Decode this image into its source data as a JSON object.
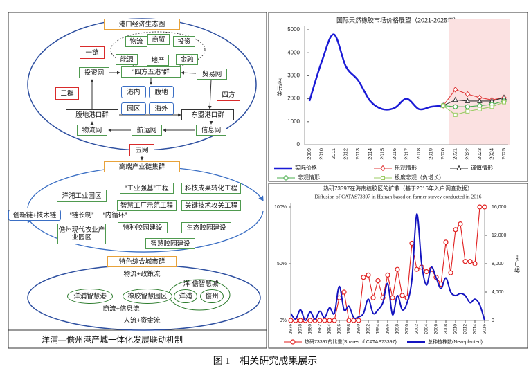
{
  "diagram": {
    "title": "洋浦—儋州港产城一体化发展联动机制",
    "nodes": [
      "港口经济生态圈",
      "物流",
      "商贸",
      "投资",
      "能源",
      "地产",
      "金融",
      "一链",
      "投资网",
      "“四方五港”群",
      "贸易网",
      "三群",
      "港内",
      "腹地",
      "园区",
      "海外",
      "四方",
      "腹地港口群",
      "东盟港口群",
      "物流网",
      "航运网",
      "信息网",
      "五网",
      "高端产业链集群",
      "洋浦工业园区",
      "“工业强基”工程",
      "科技成果转化工程",
      "创新链+技术链",
      "“链长制”",
      "“内循环”",
      "智慧工厂示范工程",
      "关键技术攻关工程",
      "儋州现代农业产业园区",
      "特种胶园建设",
      "生态胶园建设",
      "智慧胶园建设",
      "特色综合城市群",
      "物流+政策流",
      "洋浦智慧港",
      "橡胶智慧园区",
      "洋-儋智慧城",
      "洋浦",
      "儋州",
      "商流+信息流",
      "人流+资金流"
    ]
  },
  "chart_data": [
    {
      "type": "line",
      "title": "国际天然橡胶市场价格展望（2021-2025年）",
      "y_label": "美元/吨",
      "categories": [
        "2009",
        "2010",
        "2011",
        "2012",
        "2013",
        "2014",
        "2015",
        "2016",
        "2017",
        "2018",
        "2019",
        "2020",
        "2021",
        "2022",
        "2023",
        "2024",
        "2025"
      ],
      "ylim": [
        0,
        5000
      ],
      "yticks": [
        0,
        1000,
        2000,
        3000,
        4000,
        5000
      ],
      "forecast_band": {
        "from": "2021",
        "to": "2025",
        "color": "#fbe1e1"
      },
      "series": [
        {
          "name": "实际价格",
          "color": "#1a1ad6",
          "marker": "none",
          "smooth": true,
          "values": [
            1900,
            3600,
            4800,
            3400,
            2800,
            1900,
            1550,
            1600,
            2000,
            1550,
            1650,
            1700,
            null,
            null,
            null,
            null,
            null
          ]
        },
        {
          "name": "乐观情形",
          "color": "#e03a3a",
          "marker": "diamond",
          "values": [
            null,
            null,
            null,
            null,
            null,
            null,
            null,
            null,
            null,
            null,
            null,
            1700,
            2400,
            2200,
            2050,
            1950,
            2050
          ]
        },
        {
          "name": "谨慎情形",
          "color": "#333333",
          "marker": "triangle",
          "values": [
            null,
            null,
            null,
            null,
            null,
            null,
            null,
            null,
            null,
            null,
            null,
            1700,
            1950,
            1900,
            1900,
            1900,
            2050
          ]
        },
        {
          "name": "悲观情形",
          "color": "#4caf50",
          "marker": "circle",
          "values": [
            null,
            null,
            null,
            null,
            null,
            null,
            null,
            null,
            null,
            null,
            null,
            1700,
            1650,
            1650,
            1700,
            1750,
            1900
          ]
        },
        {
          "name": "极度悲观（负增长）",
          "color": "#9ccc65",
          "marker": "square",
          "values": [
            null,
            null,
            null,
            null,
            null,
            null,
            null,
            null,
            null,
            null,
            null,
            1700,
            1300,
            1450,
            1550,
            1650,
            1850
          ]
        }
      ]
    },
    {
      "type": "line",
      "title": "热研73397在海南植胶区的扩散（基于2016年入户调查数据）",
      "subtitle": "Diffusion of CATAS73397 in Hainan based on farmer survey conducted in 2016",
      "y2_label": "株/Tree",
      "x": [
        1976,
        1977,
        1978,
        1979,
        1980,
        1981,
        1982,
        1983,
        1984,
        1985,
        1986,
        1987,
        1988,
        1989,
        1990,
        1991,
        1992,
        1993,
        1994,
        1995,
        1996,
        1997,
        1998,
        1999,
        2000,
        2001,
        2002,
        2003,
        2004,
        2005,
        2006,
        2007,
        2008,
        2009,
        2010,
        2011,
        2012,
        2013,
        2014,
        2015,
        2016
      ],
      "xlim": [
        1976,
        2016
      ],
      "xticks": [
        1976,
        1978,
        1980,
        1982,
        1984,
        1986,
        1988,
        1990,
        1992,
        1994,
        1996,
        1998,
        2000,
        2002,
        2004,
        2006,
        2008,
        2010,
        2012,
        2014,
        2016
      ],
      "ylim": [
        0,
        100
      ],
      "yticks": [
        {
          "value": 0,
          "label": "0%"
        },
        {
          "value": 50,
          "label": "50%"
        },
        {
          "value": 100,
          "label": "100%"
        }
      ],
      "y2lim": [
        0,
        16000
      ],
      "y2ticks": [
        0,
        {
          "value": 4000,
          "label": "4,000"
        },
        {
          "value": 8000,
          "label": "8,000"
        },
        {
          "value": 12000,
          "label": "12,000"
        },
        {
          "value": 16000,
          "label": "16,000"
        }
      ],
      "series": [
        {
          "name": "热研73397的比重(Shares of CATAS73397)",
          "color": "#e01e1e",
          "marker": "circle",
          "values": [
            0,
            0,
            0,
            0,
            0,
            0,
            0,
            0,
            0,
            0,
            20,
            25,
            0,
            0,
            0,
            38,
            40,
            20,
            35,
            20,
            40,
            20,
            45,
            22,
            20,
            68,
            45,
            47,
            43,
            45,
            38,
            32,
            69,
            42,
            80,
            85,
            52,
            52,
            50,
            100,
            100
          ]
        },
        {
          "name": "总种植株数(New-planted)",
          "color": "#1414c0",
          "marker": "none",
          "smooth": true,
          "axis": "y2",
          "values": [
            1000,
            200,
            1500,
            0,
            1200,
            200,
            1300,
            400,
            1800,
            1000,
            4800,
            1500,
            2000,
            400,
            500,
            1000,
            3000,
            1000,
            1500,
            2500,
            5200,
            800,
            3500,
            1500,
            2500,
            5800,
            15000,
            8000,
            5000,
            7500,
            6000,
            4500,
            6000,
            4000,
            3500,
            3800,
            3500,
            2500,
            3000,
            2200,
            0
          ]
        }
      ]
    }
  ],
  "caption": "图 1　相关研究成果展示"
}
